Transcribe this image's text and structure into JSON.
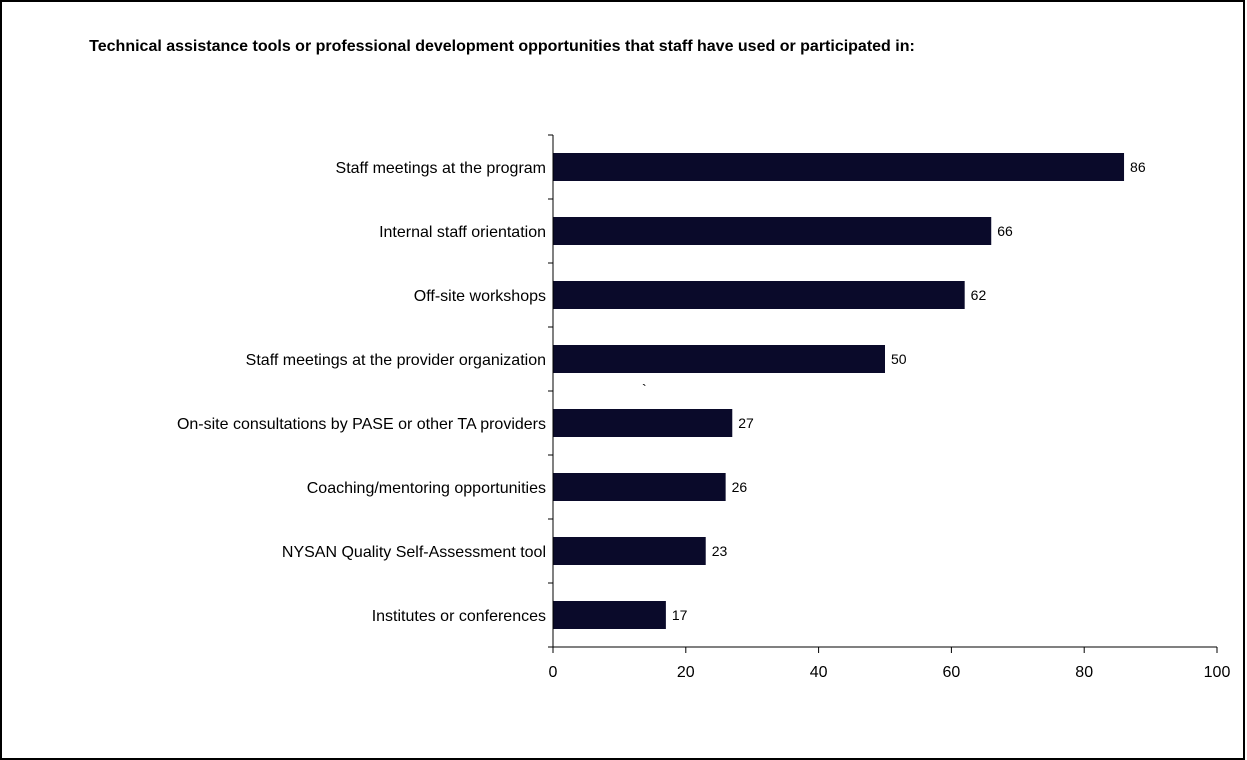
{
  "chart_data": {
    "type": "bar",
    "orientation": "horizontal",
    "title": "Technical assistance tools or professional development opportunities that staff have used or participated in:",
    "categories": [
      "Staff meetings at the program",
      "Internal staff orientation",
      "Off-site workshops",
      "Staff meetings at the provider organization",
      "On-site consultations by PASE or other TA providers",
      "Coaching/mentoring opportunities",
      "NYSAN Quality Self-Assessment tool",
      "Institutes or conferences"
    ],
    "values": [
      86,
      66,
      62,
      50,
      27,
      26,
      23,
      17
    ],
    "data_labels": [
      "86",
      "66",
      "62",
      "50",
      "27",
      "26",
      "23",
      "17"
    ],
    "xlim": [
      0,
      100
    ],
    "xticks": [
      "0",
      "20",
      "40",
      "60",
      "80",
      "100"
    ],
    "xlabel": "",
    "ylabel": "",
    "grid": false,
    "legend": "none",
    "bar_color": "#0a0a2a",
    "stray_mark": "`"
  }
}
